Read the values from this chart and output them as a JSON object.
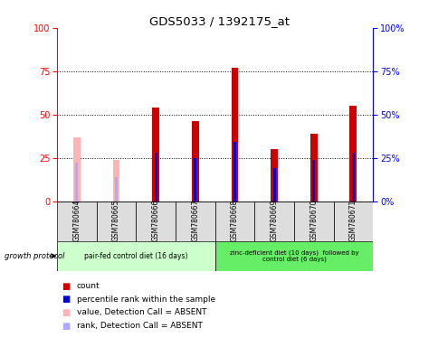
{
  "title": "GDS5033 / 1392175_at",
  "samples": [
    "GSM780664",
    "GSM780665",
    "GSM780666",
    "GSM780667",
    "GSM780668",
    "GSM780669",
    "GSM780670",
    "GSM780671"
  ],
  "count_values": [
    0,
    0,
    54,
    46,
    77,
    30,
    39,
    55
  ],
  "percentile_values": [
    22,
    0,
    28,
    25,
    34,
    19,
    24,
    28
  ],
  "absent_value_values": [
    37,
    24,
    0,
    0,
    0,
    0,
    0,
    0
  ],
  "absent_rank_values": [
    22,
    14,
    0,
    0,
    0,
    0,
    0,
    0
  ],
  "is_absent": [
    true,
    true,
    false,
    false,
    false,
    false,
    false,
    false
  ],
  "group1_label": "pair-fed control diet (16 days)",
  "group2_label": "zinc-deficient diet (10 days)  followed by\ncontrol diet (6 days)",
  "growth_protocol_label": "growth protocol",
  "ylim": [
    0,
    100
  ],
  "yticks": [
    0,
    25,
    50,
    75,
    100
  ],
  "bar_color_red": "#cc0000",
  "bar_color_blue": "#0000cc",
  "bar_color_pink": "#ffb3b3",
  "bar_color_lightblue": "#aaaaff",
  "group1_bg": "#ccffcc",
  "group2_bg": "#66ee66",
  "sample_bg": "#dddddd",
  "legend_items": [
    {
      "color": "#cc0000",
      "label": "count"
    },
    {
      "color": "#0000cc",
      "label": "percentile rank within the sample"
    },
    {
      "color": "#ffb3b3",
      "label": "value, Detection Call = ABSENT"
    },
    {
      "color": "#aaaaff",
      "label": "rank, Detection Call = ABSENT"
    }
  ]
}
